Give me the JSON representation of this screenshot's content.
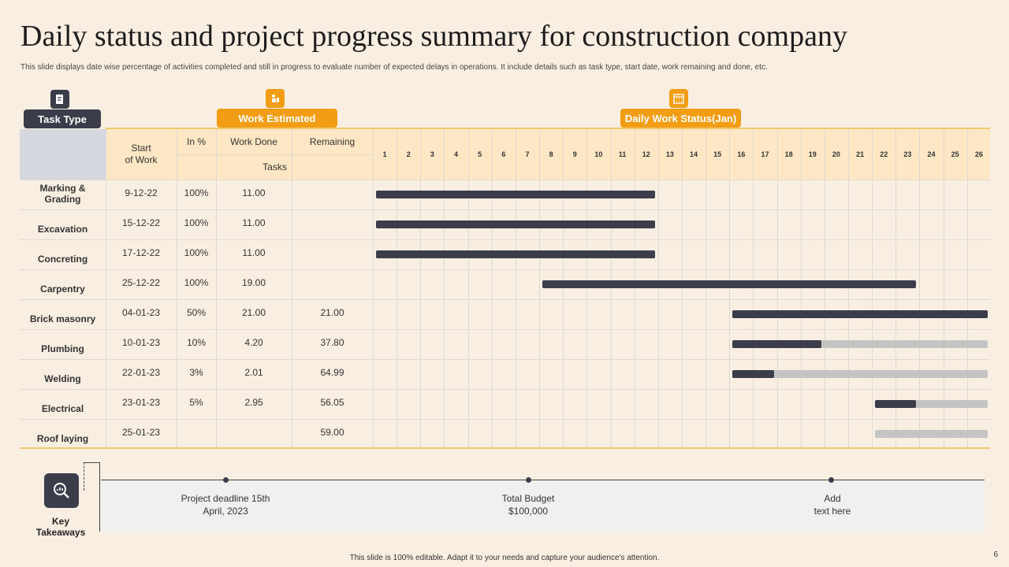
{
  "title": "Daily status and project progress summary for construction company",
  "subtitle": "This slide displays date wise percentage of activities completed and still in progress to evaluate number of expected delays in operations. It include details such as task type, start date, work remaining and done, etc.",
  "headers": {
    "task_type": "Task Type",
    "work_estimated": "Work Estimated",
    "daily_status": "Daily Work Status(Jan)"
  },
  "columns": {
    "start": "Start\nof Work",
    "in_pct": "In %",
    "work_done": "Work Done",
    "remaining": "Remaining",
    "tasks": "Tasks"
  },
  "days": [
    "1",
    "2",
    "3",
    "4",
    "5",
    "6",
    "7",
    "8",
    "9",
    "10",
    "11",
    "12",
    "13",
    "14",
    "15",
    "16",
    "17",
    "18",
    "19",
    "20",
    "21",
    "22",
    "23",
    "24",
    "25",
    "26"
  ],
  "rows": [
    {
      "task": "Marking &\nGrading",
      "start": "9-12-22",
      "pct": "100%",
      "done": "11.00",
      "remaining": "",
      "dark_from": 1,
      "dark_to": 12,
      "light_to": 12
    },
    {
      "task": "Excavation",
      "start": "15-12-22",
      "pct": "100%",
      "done": "11.00",
      "remaining": "",
      "dark_from": 1,
      "dark_to": 12,
      "light_to": 12
    },
    {
      "task": "Concreting",
      "start": "17-12-22",
      "pct": "100%",
      "done": "11.00",
      "remaining": "",
      "dark_from": 1,
      "dark_to": 12,
      "light_to": 12
    },
    {
      "task": "Carpentry",
      "start": "25-12-22",
      "pct": "100%",
      "done": "19.00",
      "remaining": "",
      "dark_from": 8,
      "dark_to": 23,
      "light_to": 23
    },
    {
      "task": "Brick masonry",
      "start": "04-01-23",
      "pct": "50%",
      "done": "21.00",
      "remaining": "21.00",
      "dark_from": 16,
      "dark_to": 26,
      "light_to": 26
    },
    {
      "task": "Plumbing",
      "start": "10-01-23",
      "pct": "10%",
      "done": "4.20",
      "remaining": "37.80",
      "dark_from": 16,
      "dark_to": 19,
      "light_to": 26
    },
    {
      "task": "Welding",
      "start": "22-01-23",
      "pct": "3%",
      "done": "2.01",
      "remaining": "64.99",
      "dark_from": 16,
      "dark_to": 17,
      "light_to": 26
    },
    {
      "task": "Electrical",
      "start": "23-01-23",
      "pct": "5%",
      "done": "2.95",
      "remaining": "56.05",
      "dark_from": 22,
      "dark_to": 23,
      "light_to": 26
    },
    {
      "task": "Roof laying",
      "start": "25-01-23",
      "pct": "",
      "done": "",
      "remaining": "59.00",
      "dark_from": 0,
      "dark_to": 0,
      "light_from": 22,
      "light_to": 26
    }
  ],
  "key_takeaways": {
    "label": "Key\nTakeaways",
    "items": [
      "Project deadline  15th\nApril, 2023",
      "Total Budget\n$100,000",
      "Add\ntext here"
    ]
  },
  "footer": "This slide is 100% editable.  Adapt it to your needs and capture your audience's attention.",
  "page_number": "6",
  "colors": {
    "accent": "#f29d13",
    "dark": "#3b3d4a",
    "light_bar": "#c4c4c4",
    "header_fill": "#fde7c4",
    "gray_cell": "#d6d8e0"
  }
}
